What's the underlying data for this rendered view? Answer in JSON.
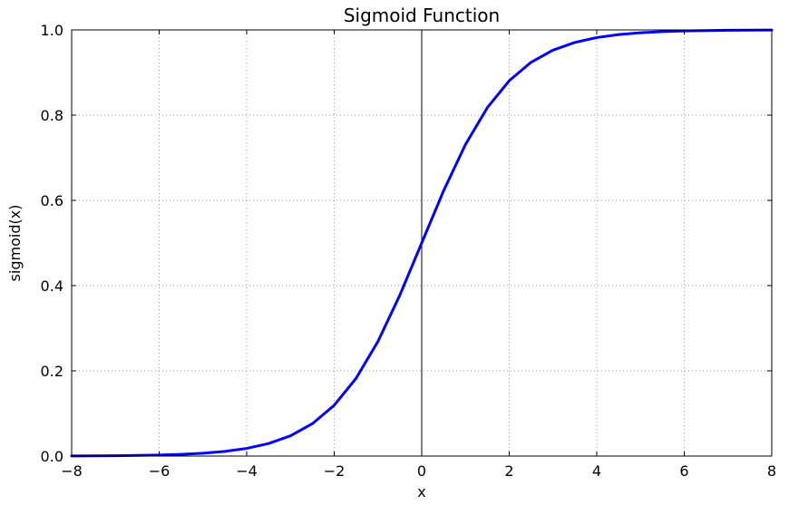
{
  "chart_data": {
    "type": "line",
    "title": "Sigmoid Function",
    "xlabel": "x",
    "ylabel": "sigmoid(x)",
    "xlim": [
      -8,
      8
    ],
    "ylim": [
      0.0,
      1.0
    ],
    "x_ticks": [
      -8,
      -6,
      -4,
      -2,
      0,
      2,
      4,
      6,
      8
    ],
    "x_tick_labels": [
      "−8",
      "−6",
      "−4",
      "−2",
      "0",
      "2",
      "4",
      "6",
      "8"
    ],
    "y_ticks": [
      0.0,
      0.2,
      0.4,
      0.6,
      0.8,
      1.0
    ],
    "y_tick_labels": [
      "0.0",
      "0.2",
      "0.4",
      "0.6",
      "0.8",
      "1.0"
    ],
    "grid": true,
    "grid_style": "dotted",
    "legend": "none",
    "background_color": "#ffffff",
    "axes_edge_color": "#000000",
    "grid_color": "#999999",
    "line_color": "#0000ff",
    "line_width": 3,
    "vline_x": 0,
    "vline_color": "#000000",
    "series": [
      {
        "name": "sigmoid",
        "x": [
          -8,
          -7.5,
          -7,
          -6.5,
          -6,
          -5.5,
          -5,
          -4.5,
          -4,
          -3.5,
          -3,
          -2.5,
          -2,
          -1.5,
          -1,
          -0.5,
          0,
          0.5,
          1,
          1.5,
          2,
          2.5,
          3,
          3.5,
          4,
          4.5,
          5,
          5.5,
          6,
          6.5,
          7,
          7.5,
          8
        ],
        "y": [
          0.000335,
          0.000553,
          0.000911,
          0.001503,
          0.002473,
          0.00407,
          0.006693,
          0.010987,
          0.017986,
          0.029312,
          0.047426,
          0.075858,
          0.119203,
          0.182426,
          0.268941,
          0.377541,
          0.5,
          0.622459,
          0.731059,
          0.817574,
          0.880797,
          0.924142,
          0.952574,
          0.970688,
          0.982014,
          0.989013,
          0.993307,
          0.99593,
          0.997527,
          0.998499,
          0.999089,
          0.999447,
          0.999665
        ]
      }
    ]
  }
}
